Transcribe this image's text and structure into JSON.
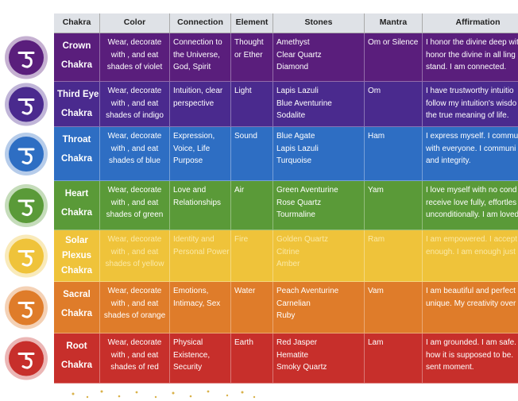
{
  "table": {
    "header": [
      "Chakra",
      "Color",
      "Connection",
      "Element",
      "Stones",
      "Mantra",
      "Affirmation"
    ],
    "rows": [
      {
        "color": "#5a1e7c",
        "cells": [
          [
            "Crown",
            "Chakra"
          ],
          [
            "Wear, decorate",
            "with , and eat",
            "shades of violet"
          ],
          [
            "Connection to",
            "the Universe,",
            "God, Spirit"
          ],
          [
            "Thought",
            "or Ether"
          ],
          [
            "Amethyst",
            "Clear Quartz",
            "Diamond"
          ],
          [
            "Om or Silence"
          ],
          [
            "I honor the divine deep wit",
            "honor the divine in all ling",
            "stand. I am connected."
          ]
        ]
      },
      {
        "color": "#4a2a8e",
        "cells": [
          [
            "Third Eye",
            "Chakra"
          ],
          [
            "Wear, decorate",
            "with , and eat",
            "shades of indigo"
          ],
          [
            "Intuition, clear",
            "perspective"
          ],
          [
            "Light"
          ],
          [
            "Lapis Lazuli",
            "Blue Aventurine",
            "Sodalite"
          ],
          [
            "Om"
          ],
          [
            "I have trustworthy intuitio",
            "follow my intuition's wisdo",
            "the true meaning of life."
          ]
        ]
      },
      {
        "color": "#2e6ec3",
        "cells": [
          [
            "Throat",
            "Chakra"
          ],
          [
            "Wear, decorate",
            "with , and eat",
            "shades of blue"
          ],
          [
            "Expression,",
            "Voice, Life",
            "Purpose"
          ],
          [
            "Sound"
          ],
          [
            "Blue Agate",
            "Lapis Lazuli",
            "Turquoise"
          ],
          [
            "Ham"
          ],
          [
            "I express myself. I commu",
            "with everyone. I communi",
            "and integrity."
          ]
        ]
      },
      {
        "color": "#5a9a38",
        "cells": [
          [
            "Heart",
            "Chakra"
          ],
          [
            "Wear, decorate",
            "with , and eat",
            "shades of green"
          ],
          [
            "Love and",
            "Relationships"
          ],
          [
            "Air"
          ],
          [
            "Green Aventurine",
            "Rose Quartz",
            "Tourmaline"
          ],
          [
            "Yam"
          ],
          [
            "I love myself with no cond",
            "receive love fully, effortles",
            "unconditionally. I am loved"
          ]
        ]
      },
      {
        "color": "#efc33a",
        "cells": [
          [
            "Solar",
            "Plexus",
            "Chakra"
          ],
          [
            "Wear, decorate",
            "with , and eat",
            "shades of yellow"
          ],
          [
            "Identity and",
            "Personal Power"
          ],
          [
            "Fire"
          ],
          [
            "Golden Quartz",
            "Citrine",
            "Amber"
          ],
          [
            "Ram"
          ],
          [
            "I am empowered. I accept",
            "enough. I am enough just"
          ]
        ]
      },
      {
        "color": "#df7c2a",
        "cells": [
          [
            "Sacral",
            "Chakra"
          ],
          [
            "Wear, decorate",
            "with , and eat",
            "shades of orange"
          ],
          [
            "Emotions,",
            "Intimacy, Sex"
          ],
          [
            "Water"
          ],
          [
            "Peach Aventurine",
            "Carnelian",
            "Ruby"
          ],
          [
            "Vam"
          ],
          [
            "I am beautiful and perfect",
            "unique. My creativity over"
          ]
        ]
      },
      {
        "color": "#c72f2b",
        "cells": [
          [
            "Root",
            "Chakra"
          ],
          [
            "Wear, decorate",
            "with , and eat",
            "shades of red"
          ],
          [
            "Physical",
            "Existence,",
            "Security"
          ],
          [
            "Earth"
          ],
          [
            "Red Jasper",
            "Hematite",
            "Smoky Quartz"
          ],
          [
            "Lam"
          ],
          [
            "I am grounded. I am safe.",
            "how it is supposed to be.",
            "sent moment."
          ]
        ]
      }
    ]
  }
}
